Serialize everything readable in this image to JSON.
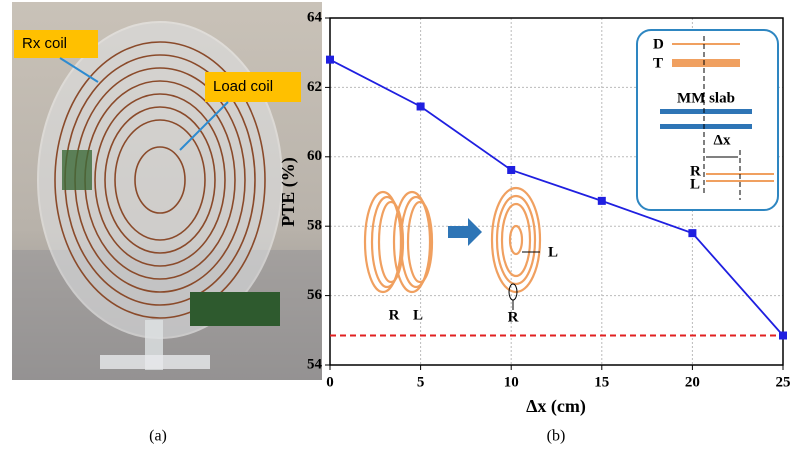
{
  "panel_a": {
    "label": "(a)",
    "annotations": [
      "Rx coil",
      "Load coil"
    ]
  },
  "chart_data": {
    "type": "line",
    "panel_label": "(b)",
    "xlabel": "Δx (cm)",
    "ylabel": "PTE (%)",
    "x": [
      0,
      5,
      10,
      15,
      20,
      25
    ],
    "series": [
      {
        "color": "#1f1fe0",
        "values": [
          62.8,
          61.45,
          59.62,
          58.73,
          57.8,
          54.85
        ]
      }
    ],
    "xlim": [
      0,
      25
    ],
    "xticks": [
      0,
      5,
      10,
      15,
      20,
      25
    ],
    "ylim": [
      54,
      64
    ],
    "yticks": [
      54,
      56,
      58,
      60,
      62,
      64
    ],
    "grid": true,
    "reference_line": {
      "value": 54.85,
      "color": "#e02020"
    },
    "inset_labels": {
      "d": "D",
      "t": "T",
      "slab": "MM slab",
      "shift": "Δx",
      "r": "R",
      "l": "L"
    },
    "coil_labels": [
      "R",
      "L",
      "L",
      "R"
    ]
  }
}
